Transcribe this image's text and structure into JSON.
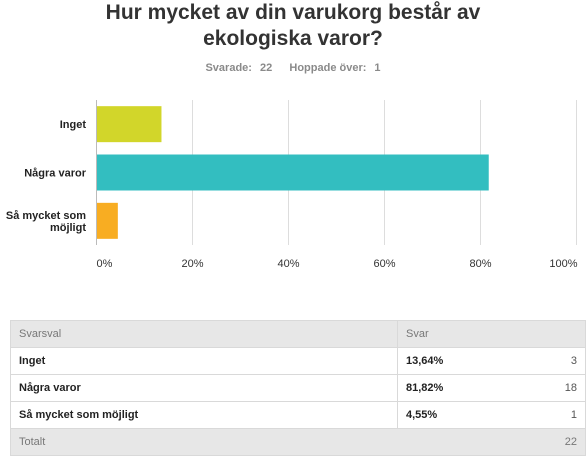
{
  "question": {
    "title": "Hur mycket av din varukorg består av ekologiska varor?",
    "answered_label": "Svarade:",
    "answered": "22",
    "skipped_label": "Hoppade över:",
    "skipped": "1"
  },
  "chart_data": {
    "type": "bar",
    "orientation": "horizontal",
    "categories": [
      "Inget",
      "Några varor",
      "Så mycket som möjligt"
    ],
    "values": [
      13.64,
      81.82,
      4.55
    ],
    "colors": [
      "#d2d62a",
      "#33bec0",
      "#f8ad22"
    ],
    "xlim": [
      0,
      100
    ],
    "ticks": [
      "0%",
      "20%",
      "40%",
      "60%",
      "80%",
      "100%"
    ],
    "grid": true
  },
  "table": {
    "headers": [
      "Svarsval",
      "Svar"
    ],
    "rows": [
      {
        "option": "Inget",
        "percent": "13,64%",
        "count": "3"
      },
      {
        "option": "Några varor",
        "percent": "81,82%",
        "count": "18"
      },
      {
        "option": "Så mycket som möjligt",
        "percent": "4,55%",
        "count": "1"
      }
    ],
    "total_label": "Totalt",
    "total": "22"
  }
}
